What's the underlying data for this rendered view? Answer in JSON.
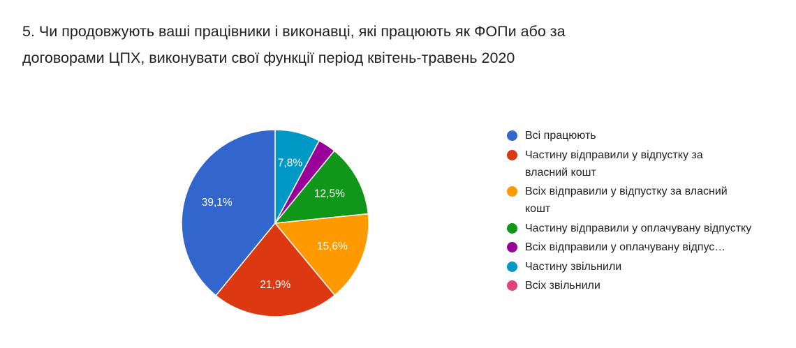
{
  "title": "5. Чи продовжують ваші працівники і виконавці, які працюють як ФОПи або за\nдоговорами ЦПХ, виконувати свої функції період квітень-травень 2020",
  "chart_data": {
    "type": "pie",
    "start_angle_deg": 90,
    "direction": "counterclockwise",
    "slices": [
      {
        "label": "Всі працюють",
        "value": 39.1,
        "display": "39,1%",
        "color": "#3366cc"
      },
      {
        "label": "Частину відправили у відпустку за власний кошт",
        "value": 21.9,
        "display": "21,9%",
        "color": "#dc3912"
      },
      {
        "label": "Всіх відправили у відпустку за власний кошт",
        "value": 15.6,
        "display": "15,6%",
        "color": "#ff9900"
      },
      {
        "label": "Частину відправили у оплачувану відпустку",
        "value": 12.5,
        "display": "12,5%",
        "color": "#109618"
      },
      {
        "label": "Всіх відправили у оплачувану відпус…",
        "value": 3.1,
        "display": "",
        "color": "#990099"
      },
      {
        "label": "Частину звільнили",
        "value": 7.8,
        "display": "7,8%",
        "color": "#0099c6"
      },
      {
        "label": "Всіх звільнили",
        "value": 0,
        "display": "",
        "color": "#dd4477"
      }
    ],
    "legend_position": "right"
  }
}
